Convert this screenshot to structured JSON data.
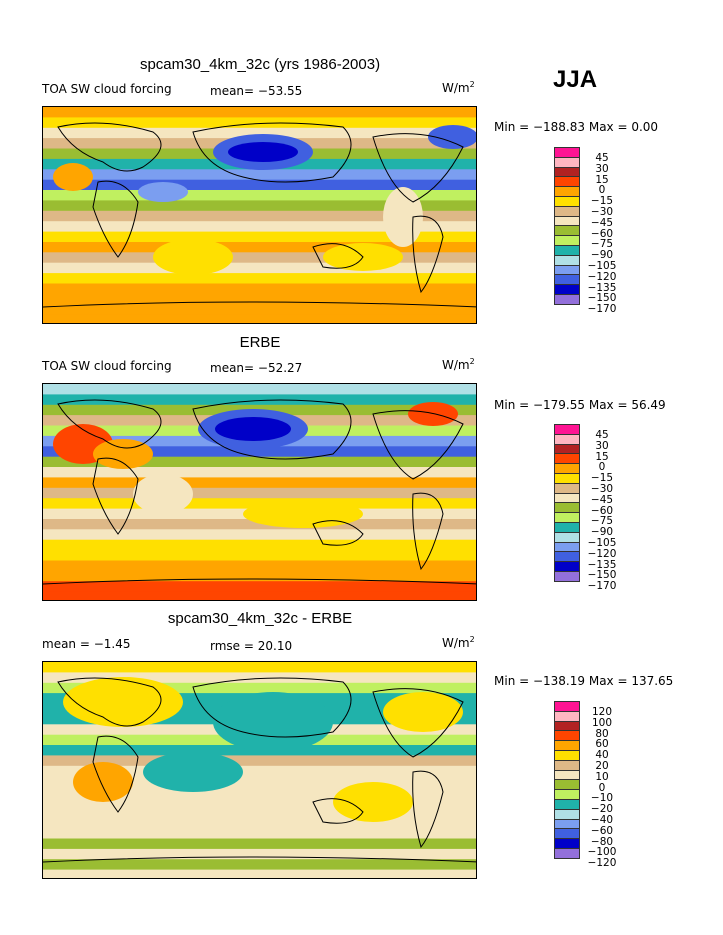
{
  "season": "JJA",
  "colors": [
    "#ff1493",
    "#ffb6c1",
    "#b22222",
    "#ff4500",
    "#ffa500",
    "#ffe000",
    "#deb887",
    "#f5e6c0",
    "#9abd32",
    "#c0f060",
    "#20b2aa",
    "#b0e0e6",
    "#7b9ef0",
    "#4060e0",
    "#0000c8",
    "#9370db"
  ],
  "panels": [
    {
      "title": "spcam30_4km_32c (yrs 1986-2003)",
      "left_label": "TOA SW cloud forcing",
      "stat": "mean= −53.55",
      "units": "W/m",
      "units_sup": "2",
      "minmax": "Min = −188.83 Max =    0.00",
      "levels": [
        "45",
        "30",
        "15",
        "0",
        "−15",
        "−30",
        "−45",
        "−60",
        "−75",
        "−90",
        "−105",
        "−120",
        "−135",
        "−150",
        "−170"
      ]
    },
    {
      "title": "ERBE",
      "left_label": "TOA SW cloud forcing",
      "stat": "mean= −52.27",
      "units": "W/m",
      "units_sup": "2",
      "minmax": "Min = −179.55 Max =   56.49",
      "levels": [
        "45",
        "30",
        "15",
        "0",
        "−15",
        "−30",
        "−45",
        "−60",
        "−75",
        "−90",
        "−105",
        "−120",
        "−135",
        "−150",
        "−170"
      ]
    },
    {
      "title": "spcam30_4km_32c - ERBE",
      "left_label": "mean =   −1.45",
      "stat": "rmse =  20.10",
      "units": "W/m",
      "units_sup": "2",
      "minmax": "Min = −138.19 Max = 137.65",
      "levels": [
        "120",
        "100",
        "80",
        "60",
        "40",
        "20",
        "10",
        "0",
        "−10",
        "−20",
        "−40",
        "−60",
        "−80",
        "−100",
        "−120"
      ]
    }
  ]
}
